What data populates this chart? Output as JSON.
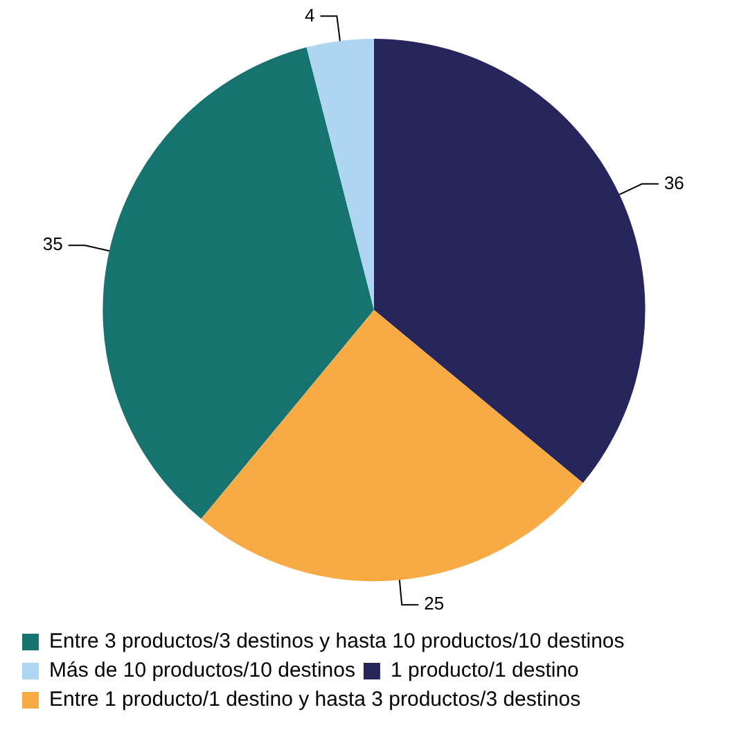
{
  "chart_data": {
    "type": "pie",
    "categories": [
      "Entre 3 productos/3 destinos y hasta 10 productos/10 destinos",
      "Más de 10 productos/10 destinos",
      "1 producto/1 destino",
      "Entre 1 producto/1 destino y hasta 3 productos/3 destinos"
    ],
    "values": [
      35,
      4,
      36,
      25
    ],
    "colors": [
      "#17736f",
      "#aed6f1",
      "#27265c",
      "#f8aa45"
    ],
    "data_labels": true,
    "legend": "bottom"
  }
}
